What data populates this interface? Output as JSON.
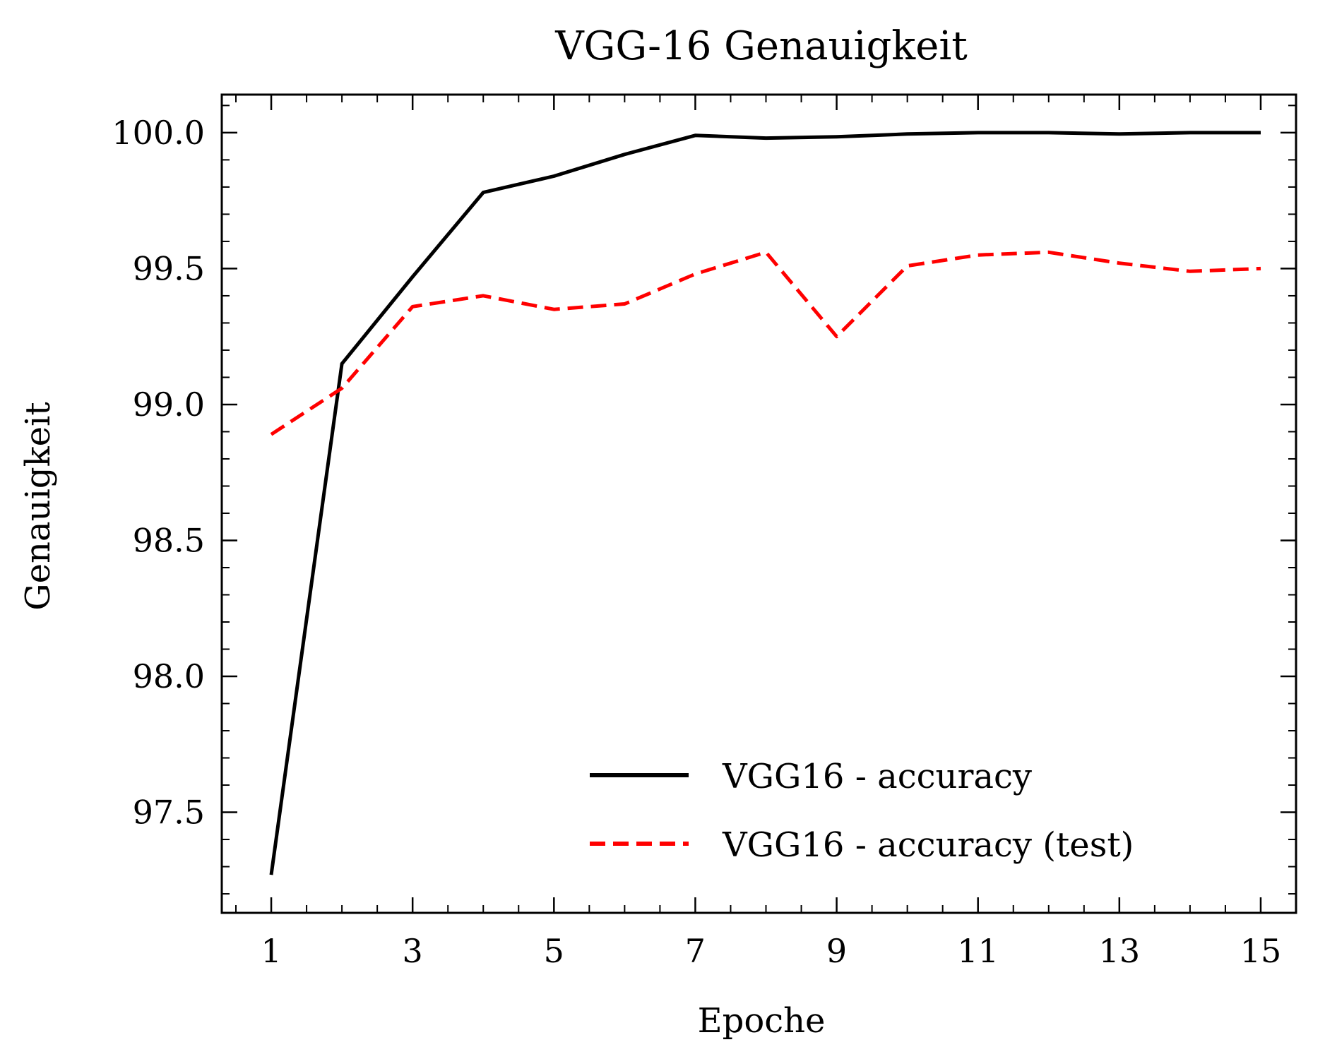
{
  "chart_data": {
    "type": "line",
    "title": "VGG-16 Genauigkeit",
    "xlabel": "Epoche",
    "ylabel": "Genauigkeit",
    "x": [
      1,
      2,
      3,
      4,
      5,
      6,
      7,
      8,
      9,
      10,
      11,
      12,
      13,
      14,
      15
    ],
    "xlim": [
      0.3,
      15.5
    ],
    "ylim": [
      97.13,
      100.14
    ],
    "xticks": [
      1,
      3,
      5,
      7,
      9,
      11,
      13,
      15
    ],
    "xtick_labels": [
      "1",
      "3",
      "5",
      "7",
      "9",
      "11",
      "13",
      "15"
    ],
    "yticks": [
      97.5,
      98.0,
      98.5,
      99.0,
      99.5,
      100.0
    ],
    "ytick_labels": [
      "97.5",
      "98.0",
      "98.5",
      "99.0",
      "99.5",
      "100.0"
    ],
    "grid": false,
    "legend_position": "bottom-right",
    "series": [
      {
        "name": "VGG16 - accuracy",
        "color": "#000000",
        "style": "solid",
        "values": [
          97.27,
          99.15,
          99.47,
          99.78,
          99.84,
          99.92,
          99.99,
          99.98,
          99.985,
          99.995,
          100.0,
          100.0,
          99.995,
          100.0,
          100.0
        ]
      },
      {
        "name": "VGG16 - accuracy (test)",
        "color": "#ff0000",
        "style": "dashed",
        "values": [
          98.89,
          99.06,
          99.36,
          99.4,
          99.35,
          99.37,
          99.48,
          99.56,
          99.25,
          99.51,
          99.55,
          99.56,
          99.52,
          99.49,
          99.5
        ]
      }
    ]
  }
}
